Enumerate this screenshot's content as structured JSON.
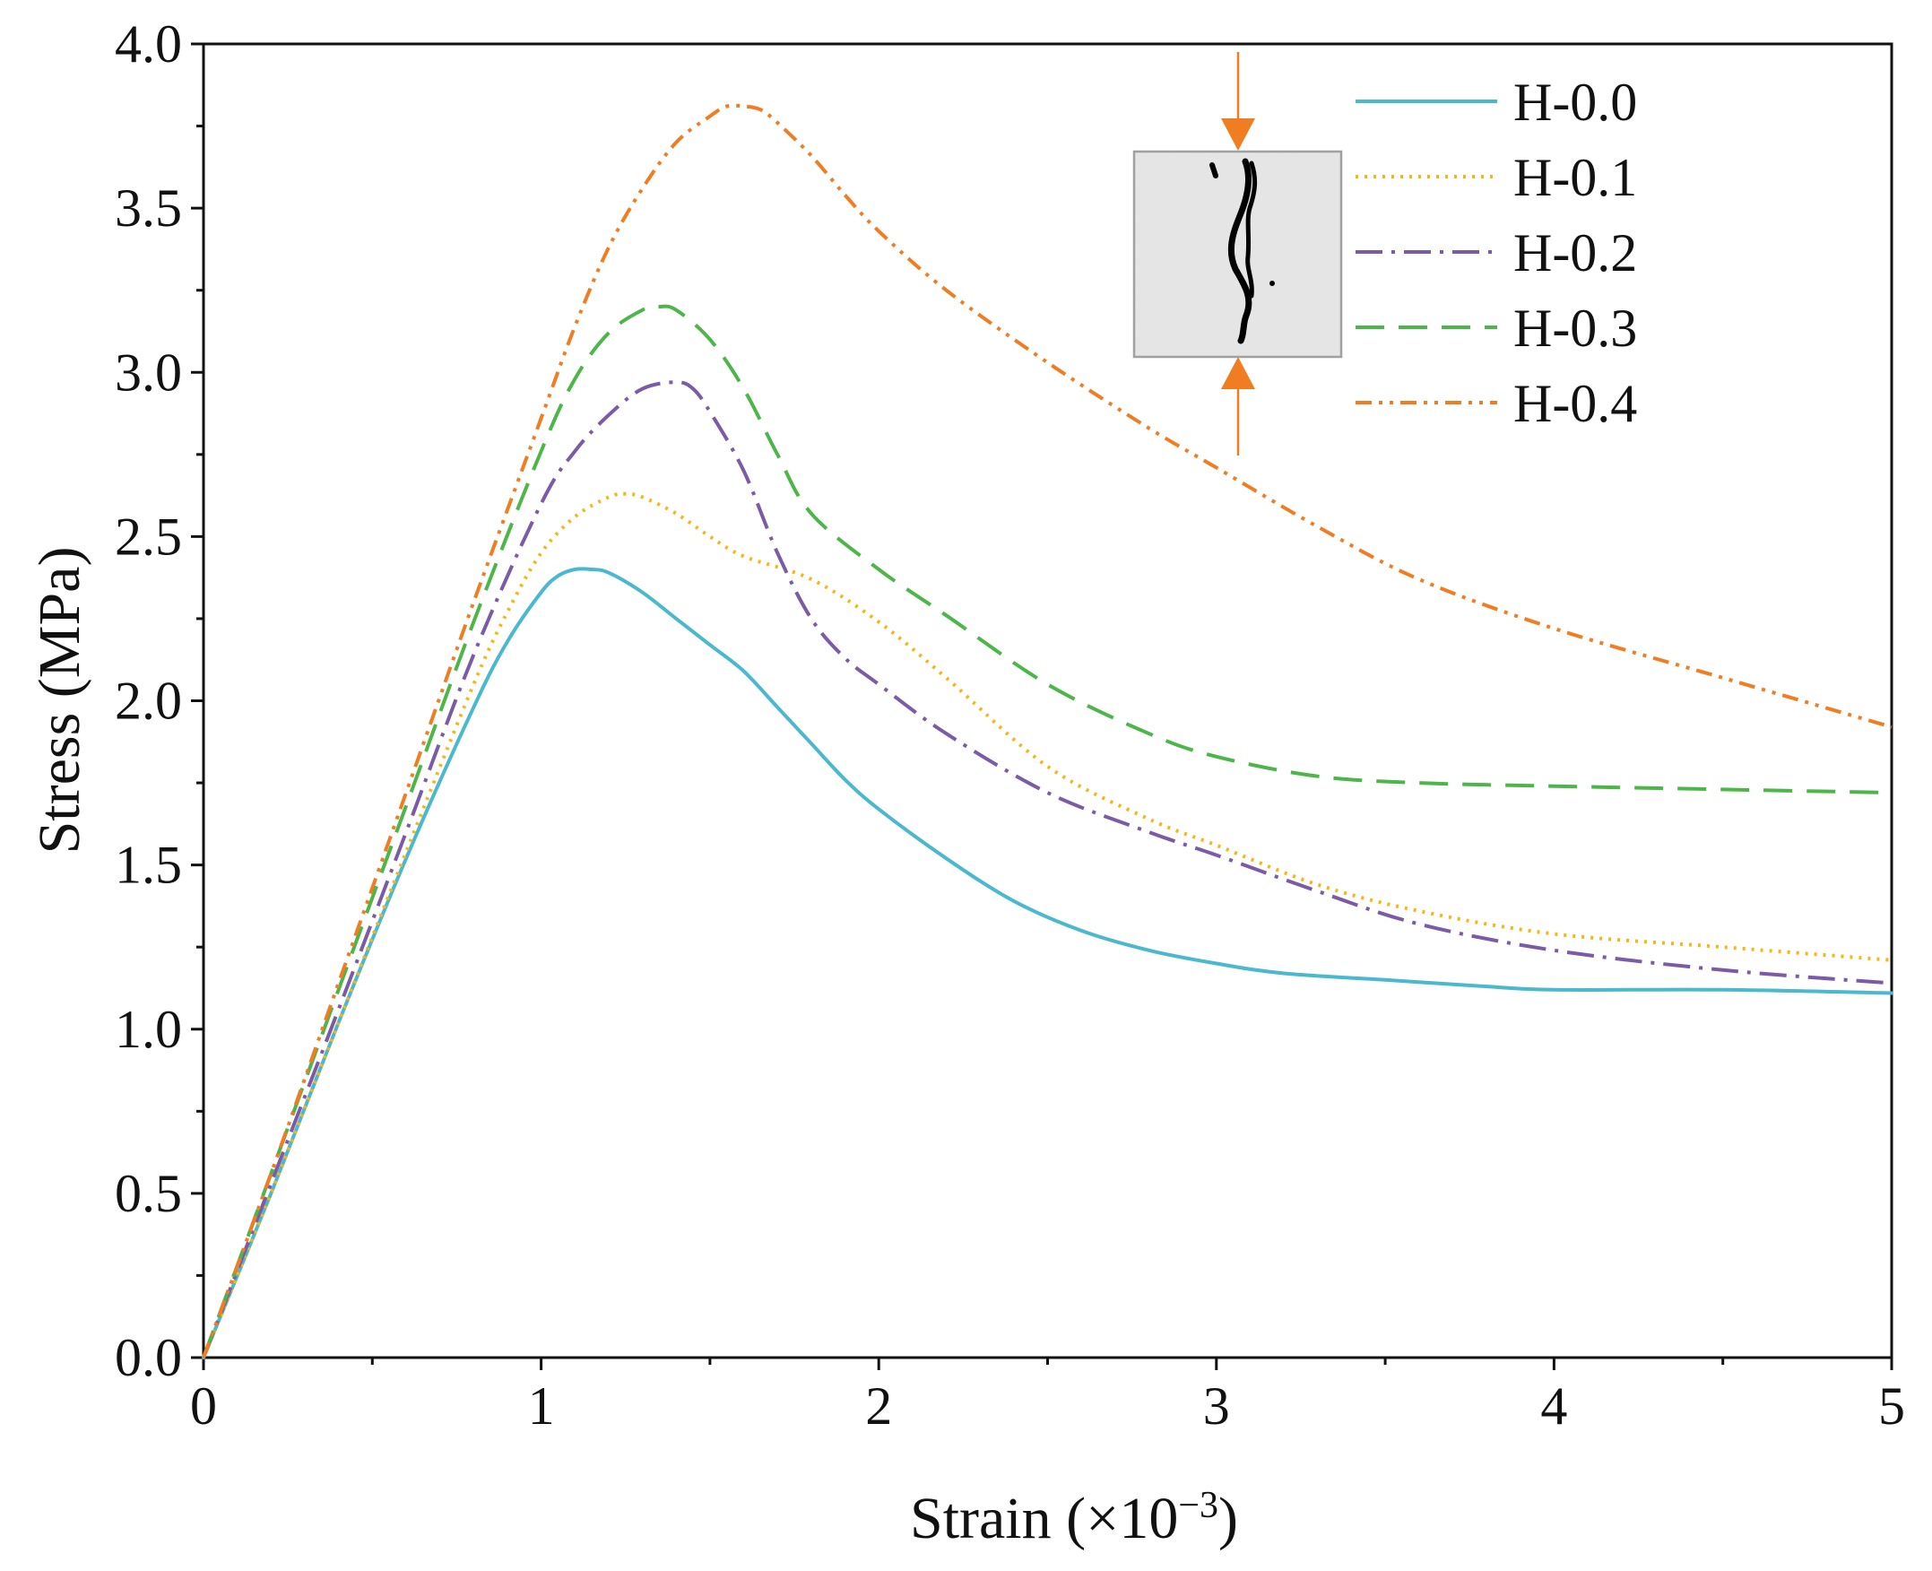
{
  "chart_data": {
    "type": "line",
    "title": "",
    "xlabel_main": "Strain (×10",
    "xlabel_exp": "−3",
    "xlabel_close": ")",
    "ylabel": "Stress (MPa)",
    "xlim": [
      0,
      5
    ],
    "ylim": [
      0,
      4
    ],
    "grid": false,
    "legend_position": "top-right",
    "x_ticks": [
      0,
      1,
      2,
      3,
      4,
      5
    ],
    "x_tick_labels": [
      "0",
      "1",
      "2",
      "3",
      "4",
      "5"
    ],
    "x_minor_ticks": [
      0.5,
      1.5,
      2.5,
      3.5,
      4.5
    ],
    "y_ticks": [
      0,
      0.5,
      1,
      1.5,
      2,
      2.5,
      3,
      3.5,
      4
    ],
    "y_tick_labels": [
      "0.0",
      "0.5",
      "1.0",
      "1.5",
      "2.0",
      "2.5",
      "3.0",
      "3.5",
      "4.0"
    ],
    "y_minor_ticks": [
      0.25,
      0.75,
      1.25,
      1.75,
      2.25,
      2.75,
      3.25,
      3.75
    ],
    "series": [
      {
        "name": "H-0.0",
        "color": "#4ab8cf",
        "dash": "",
        "x": [
          0,
          0.2,
          0.4,
          0.6,
          0.8,
          0.9,
          1.0,
          1.05,
          1.1,
          1.15,
          1.2,
          1.3,
          1.4,
          1.5,
          1.6,
          1.7,
          1.8,
          1.9,
          2.0,
          2.2,
          2.4,
          2.6,
          2.8,
          3.0,
          3.2,
          3.5,
          3.8,
          4.0,
          4.5,
          5.0
        ],
        "y": [
          0,
          0.5,
          1.02,
          1.52,
          1.98,
          2.18,
          2.33,
          2.38,
          2.4,
          2.4,
          2.39,
          2.33,
          2.25,
          2.17,
          2.09,
          1.98,
          1.87,
          1.76,
          1.67,
          1.52,
          1.39,
          1.3,
          1.24,
          1.2,
          1.17,
          1.15,
          1.13,
          1.12,
          1.12,
          1.11
        ]
      },
      {
        "name": "H-0.1",
        "color": "#f5b715",
        "dash": "3 7",
        "x": [
          0,
          0.2,
          0.4,
          0.6,
          0.8,
          0.9,
          1.0,
          1.1,
          1.2,
          1.25,
          1.3,
          1.4,
          1.5,
          1.6,
          1.8,
          2.0,
          2.2,
          2.5,
          2.8,
          3.0,
          3.3,
          3.6,
          4.0,
          4.5,
          5.0
        ],
        "y": [
          0,
          0.5,
          1.02,
          1.54,
          2.05,
          2.27,
          2.45,
          2.56,
          2.62,
          2.63,
          2.62,
          2.57,
          2.5,
          2.44,
          2.37,
          2.24,
          2.07,
          1.8,
          1.64,
          1.56,
          1.44,
          1.36,
          1.29,
          1.25,
          1.21
        ]
      },
      {
        "name": "H-0.2",
        "color": "#7b5aa6",
        "dash": "30 10 4 10",
        "x": [
          0,
          0.2,
          0.4,
          0.6,
          0.8,
          1.0,
          1.1,
          1.2,
          1.3,
          1.4,
          1.45,
          1.5,
          1.6,
          1.7,
          1.8,
          1.9,
          2.0,
          2.2,
          2.5,
          2.8,
          3.0,
          3.3,
          3.6,
          4.0,
          4.5,
          5.0
        ],
        "y": [
          0,
          0.53,
          1.06,
          1.6,
          2.14,
          2.6,
          2.76,
          2.87,
          2.95,
          2.97,
          2.95,
          2.88,
          2.7,
          2.45,
          2.25,
          2.13,
          2.05,
          1.9,
          1.72,
          1.6,
          1.53,
          1.42,
          1.32,
          1.24,
          1.18,
          1.14
        ]
      },
      {
        "name": "H-0.3",
        "color": "#4cb648",
        "dash": "32 16",
        "x": [
          0,
          0.2,
          0.4,
          0.6,
          0.8,
          1.0,
          1.1,
          1.2,
          1.3,
          1.35,
          1.4,
          1.5,
          1.6,
          1.7,
          1.8,
          2.0,
          2.2,
          2.5,
          2.8,
          3.0,
          3.3,
          3.6,
          4.0,
          4.5,
          5.0
        ],
        "y": [
          0,
          0.56,
          1.12,
          1.68,
          2.24,
          2.76,
          2.98,
          3.12,
          3.19,
          3.2,
          3.19,
          3.1,
          2.95,
          2.75,
          2.57,
          2.4,
          2.26,
          2.05,
          1.9,
          1.83,
          1.77,
          1.75,
          1.74,
          1.73,
          1.72
        ]
      },
      {
        "name": "H-0.4",
        "color": "#f07d22",
        "dash": "18 8 4 8 4 8",
        "x": [
          0,
          0.2,
          0.4,
          0.6,
          0.8,
          1.0,
          1.1,
          1.2,
          1.3,
          1.4,
          1.5,
          1.55,
          1.6,
          1.65,
          1.7,
          1.8,
          1.9,
          2.0,
          2.2,
          2.5,
          2.8,
          3.0,
          3.3,
          3.6,
          4.0,
          4.5,
          5.0
        ],
        "y": [
          0,
          0.56,
          1.14,
          1.72,
          2.3,
          2.86,
          3.14,
          3.38,
          3.56,
          3.7,
          3.78,
          3.81,
          3.81,
          3.8,
          3.76,
          3.66,
          3.54,
          3.43,
          3.25,
          3.03,
          2.83,
          2.71,
          2.53,
          2.37,
          2.22,
          2.07,
          1.92
        ]
      }
    ]
  },
  "inset": {
    "description_icon": "cracked-specimen-icon",
    "arrow_color": "#f07d22"
  }
}
